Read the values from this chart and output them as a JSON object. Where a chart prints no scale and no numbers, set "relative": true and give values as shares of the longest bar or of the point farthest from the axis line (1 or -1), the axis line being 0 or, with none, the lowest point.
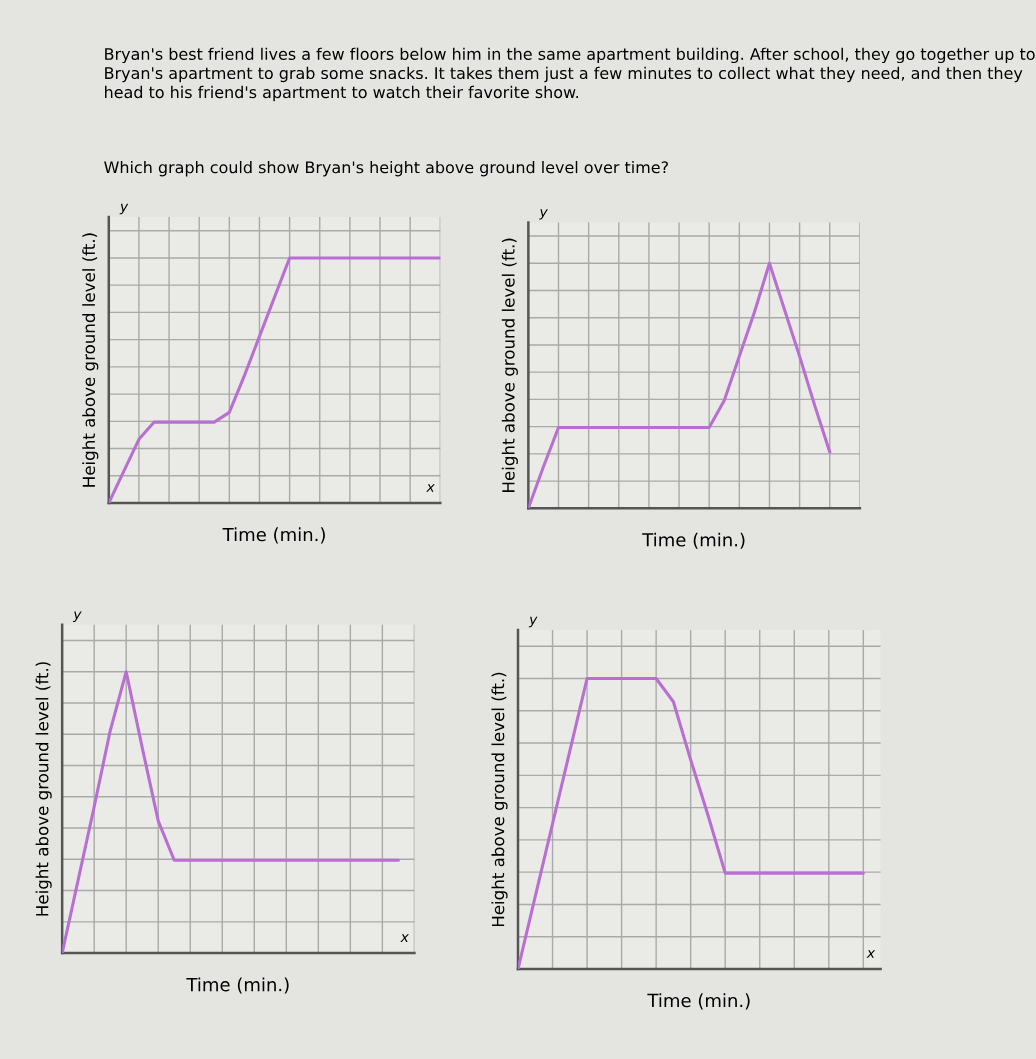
{
  "chart_data": [
    {
      "type": "line",
      "relative": true,
      "grid": true,
      "marker": "none",
      "line_style": "solid",
      "title": "Bryan's best friend lives a few floors below him in the same apartment building. After school, they go together up to Bryan's apartment to grab some snacks. It takes them just a few minutes to collect what they need, and then they head to his friend's apartment to watch their favorite show.",
      "subtitle": "Which graph could show Bryan's height above ground level over time?",
      "xlabel": "Time (min.)",
      "ylabel": "Height above ground level (ft.)",
      "annotations": [
        "y",
        "x"
      ],
      "categories": [
        null,
        null,
        null,
        null,
        null,
        null,
        null,
        null,
        null,
        null,
        null,
        null,
        null,
        null,
        null,
        null,
        null,
        null,
        null,
        null,
        null,
        null,
        null
      ],
      "series": [
        {
          "color": "#b86fd2",
          "values": [
            0,
            0.13,
            0.26,
            0.33,
            0.33,
            0.33,
            0.33,
            0.33,
            0.37,
            0.52,
            0.68,
            0.84,
            1,
            1,
            1,
            1,
            1,
            1,
            1,
            1,
            1,
            1,
            1
          ]
        }
      ]
    },
    {
      "type": "line",
      "relative": true,
      "grid": true,
      "marker": "none",
      "line_style": "solid",
      "xlabel": "Time (min.)",
      "ylabel": "Height above ground level (ft.)",
      "annotations": [
        "y"
      ],
      "categories": [
        null,
        null,
        null,
        null,
        null,
        null,
        null,
        null,
        null,
        null,
        null,
        null,
        null,
        null,
        null,
        null,
        null,
        null,
        null,
        null,
        null,
        null,
        null
      ],
      "series": [
        {
          "color": "#b86fd2",
          "values": [
            0,
            0.17,
            0.33,
            0.33,
            0.33,
            0.33,
            0.33,
            0.33,
            0.33,
            0.33,
            0.33,
            0.33,
            0.33,
            0.44,
            0.62,
            0.8,
            1,
            0.81,
            0.62,
            0.42,
            0.23,
            null,
            null
          ]
        }
      ]
    },
    {
      "type": "line",
      "relative": true,
      "grid": true,
      "marker": "none",
      "line_style": "solid",
      "xlabel": "Time (min.)",
      "ylabel": "Height above ground level (ft.)",
      "annotations": [
        "y",
        "x"
      ],
      "categories": [
        null,
        null,
        null,
        null,
        null,
        null,
        null,
        null,
        null,
        null,
        null,
        null,
        null,
        null,
        null,
        null,
        null,
        null,
        null,
        null,
        null,
        null,
        null
      ],
      "series": [
        {
          "color": "#b86fd2",
          "values": [
            0,
            0.26,
            0.52,
            0.79,
            1,
            0.73,
            0.47,
            0.33,
            0.33,
            0.33,
            0.33,
            0.33,
            0.33,
            0.33,
            0.33,
            0.33,
            0.33,
            0.33,
            0.33,
            0.33,
            0.33,
            0.33,
            null
          ]
        }
      ]
    },
    {
      "type": "line",
      "relative": true,
      "grid": true,
      "marker": "none",
      "line_style": "solid",
      "xlabel": "Time (min.)",
      "ylabel": "Height above ground level (ft.)",
      "annotations": [
        "y",
        "x"
      ],
      "categories": [
        null,
        null,
        null,
        null,
        null,
        null,
        null,
        null,
        null,
        null,
        null,
        null,
        null,
        null,
        null,
        null,
        null,
        null,
        null,
        null,
        null,
        null
      ],
      "series": [
        {
          "color": "#b86fd2",
          "values": [
            0,
            0.25,
            0.5,
            0.75,
            1,
            1,
            1,
            1,
            1,
            0.92,
            0.72,
            0.53,
            0.33,
            0.33,
            0.33,
            0.33,
            0.33,
            0.33,
            0.33,
            0.33,
            0.33,
            null
          ]
        }
      ]
    }
  ]
}
